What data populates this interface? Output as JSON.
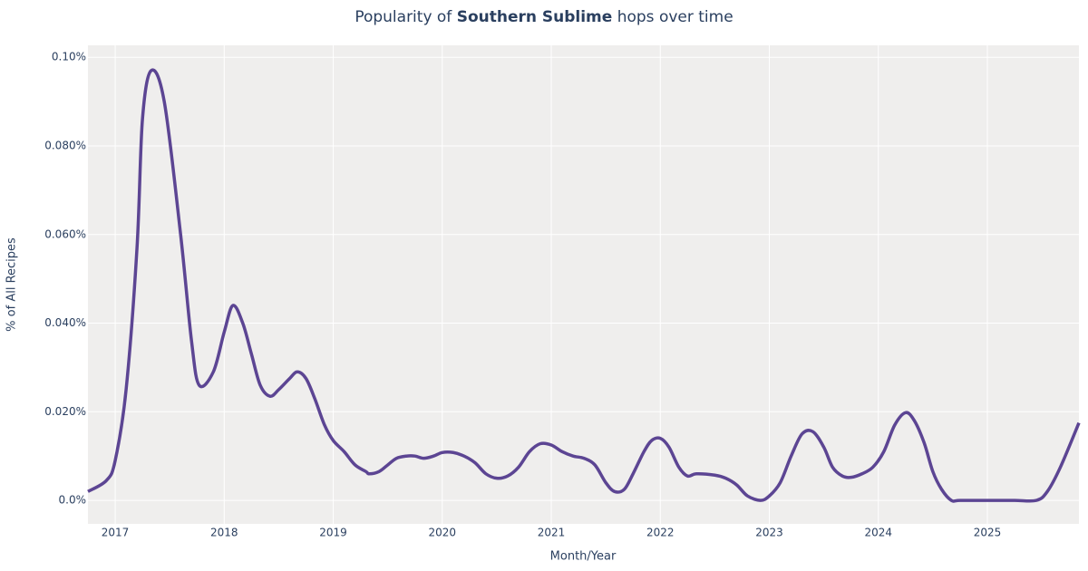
{
  "chart_data": {
    "type": "line",
    "title": [
      "Popularity of ",
      "Southern Sublime",
      " hops over time"
    ],
    "x_label": "Month/Year",
    "y_label": "% of All Recipes",
    "xlim": [
      2016.75,
      2025.84
    ],
    "xticks": [
      2017,
      2018,
      2019,
      2020,
      2021,
      2022,
      2023,
      2024,
      2025
    ],
    "ylim": [
      -0.0053,
      0.1027
    ],
    "yticks": [
      {
        "value": 0,
        "label": "0.0%"
      },
      {
        "value": 0.02,
        "label": "0.020%"
      },
      {
        "value": 0.04,
        "label": "0.040%"
      },
      {
        "value": 0.06,
        "label": "0.060%"
      },
      {
        "value": 0.08,
        "label": "0.080%"
      },
      {
        "value": 0.1,
        "label": "0.10%"
      }
    ],
    "grid": true,
    "series": [
      {
        "color": "#5c4593",
        "x": [
          2016.75,
          2016.92,
          2017.0,
          2017.1,
          2017.2,
          2017.25,
          2017.33,
          2017.45,
          2017.6,
          2017.7,
          2017.77,
          2017.9,
          2018.0,
          2018.08,
          2018.17,
          2018.25,
          2018.33,
          2018.42,
          2018.5,
          2018.6,
          2018.67,
          2018.75,
          2018.83,
          2018.92,
          2019.0,
          2019.1,
          2019.2,
          2019.3,
          2019.33,
          2019.42,
          2019.5,
          2019.58,
          2019.67,
          2019.75,
          2019.83,
          2019.92,
          2020.0,
          2020.1,
          2020.2,
          2020.3,
          2020.4,
          2020.5,
          2020.6,
          2020.7,
          2020.8,
          2020.9,
          2021.0,
          2021.1,
          2021.2,
          2021.3,
          2021.4,
          2021.5,
          2021.58,
          2021.67,
          2021.75,
          2021.85,
          2021.92,
          2022.0,
          2022.08,
          2022.17,
          2022.25,
          2022.33,
          2022.5,
          2022.6,
          2022.7,
          2022.8,
          2022.92,
          2023.0,
          2023.1,
          2023.2,
          2023.3,
          2023.4,
          2023.5,
          2023.58,
          2023.67,
          2023.75,
          2023.85,
          2023.95,
          2024.05,
          2024.15,
          2024.25,
          2024.33,
          2024.42,
          2024.5,
          2024.58,
          2024.67,
          2024.75,
          2025.0,
          2025.25,
          2025.45,
          2025.55,
          2025.67,
          2025.84
        ],
        "values": [
          0.002,
          0.0045,
          0.009,
          0.025,
          0.057,
          0.086,
          0.097,
          0.09,
          0.06,
          0.036,
          0.026,
          0.029,
          0.038,
          0.044,
          0.04,
          0.033,
          0.026,
          0.0235,
          0.025,
          0.0275,
          0.029,
          0.0275,
          0.023,
          0.017,
          0.0135,
          0.011,
          0.008,
          0.0065,
          0.006,
          0.0065,
          0.008,
          0.0095,
          0.01,
          0.01,
          0.0095,
          0.01,
          0.0108,
          0.0108,
          0.01,
          0.0085,
          0.006,
          0.005,
          0.0055,
          0.0075,
          0.011,
          0.0128,
          0.0125,
          0.011,
          0.01,
          0.0095,
          0.008,
          0.004,
          0.002,
          0.0025,
          0.006,
          0.011,
          0.0135,
          0.014,
          0.012,
          0.0075,
          0.0055,
          0.006,
          0.0057,
          0.005,
          0.0035,
          0.001,
          0,
          0.001,
          0.004,
          0.01,
          0.015,
          0.0155,
          0.012,
          0.0075,
          0.0055,
          0.0052,
          0.006,
          0.0075,
          0.011,
          0.017,
          0.0198,
          0.018,
          0.013,
          0.0065,
          0.0025,
          0,
          0,
          0,
          0,
          0,
          0.002,
          0.0075,
          0.0175
        ]
      }
    ]
  }
}
